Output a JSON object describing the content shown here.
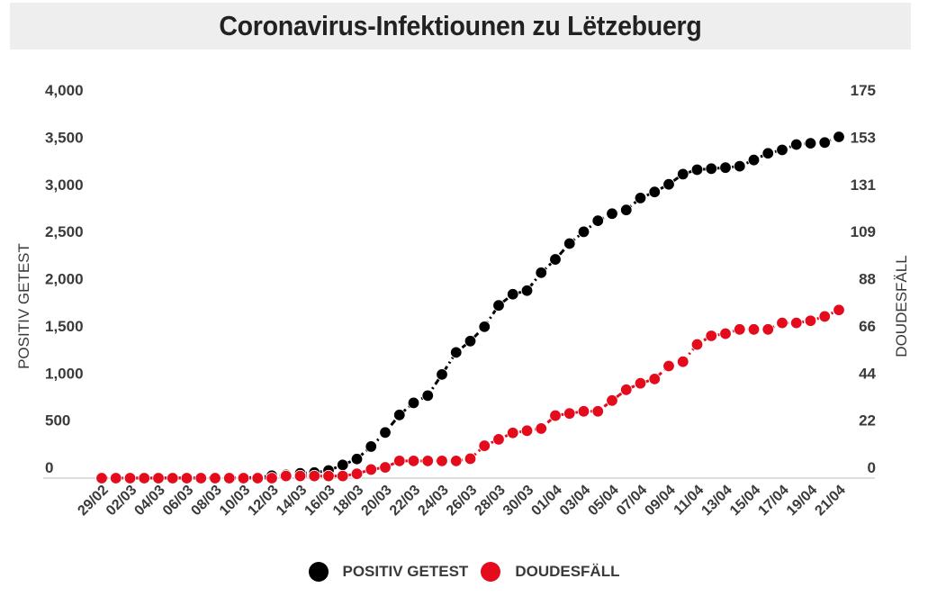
{
  "chart_data": {
    "type": "line",
    "title": "Coronavirus-Infektiounen zu Lëtzebuerg",
    "xlabel": "",
    "ylabel": "POSITIV GETEST",
    "y2label": "DOUDESFÄLL",
    "ylim": [
      0,
      4000
    ],
    "y2lim": [
      0,
      175
    ],
    "yticks": [
      "0",
      "500",
      "1,000",
      "1,500",
      "2,000",
      "2,500",
      "3,000",
      "3,500",
      "4,000"
    ],
    "y2ticks": [
      "0",
      "22",
      "44",
      "66",
      "88",
      "109",
      "131",
      "153",
      "175"
    ],
    "grid": false,
    "legend_position": "bottom-center",
    "x": [
      "29/02",
      "01/03",
      "02/03",
      "03/03",
      "04/03",
      "05/03",
      "06/03",
      "07/03",
      "08/03",
      "09/03",
      "10/03",
      "11/03",
      "12/03",
      "13/03",
      "14/03",
      "15/03",
      "16/03",
      "17/03",
      "18/03",
      "19/03",
      "20/03",
      "21/03",
      "22/03",
      "23/03",
      "24/03",
      "25/03",
      "26/03",
      "27/03",
      "28/03",
      "29/03",
      "30/03",
      "31/03",
      "01/04",
      "02/04",
      "03/04",
      "04/04",
      "05/04",
      "06/04",
      "07/04",
      "08/04",
      "09/04",
      "10/04",
      "11/04",
      "12/04",
      "13/04",
      "14/04",
      "15/04",
      "16/04",
      "17/04",
      "18/04",
      "19/04",
      "20/04",
      "21/04"
    ],
    "xtick_labels": [
      "29/02",
      "02/03",
      "04/03",
      "06/03",
      "08/03",
      "10/03",
      "12/03",
      "14/03",
      "16/03",
      "18/03",
      "20/03",
      "22/03",
      "24/03",
      "26/03",
      "28/03",
      "30/03",
      "01/04",
      "03/04",
      "05/04",
      "07/04",
      "09/04",
      "11/04",
      "13/04",
      "15/04",
      "17/04",
      "19/04",
      "21/04"
    ],
    "series": [
      {
        "name": "POSITIV GETEST",
        "axis": "left",
        "color": "#000000",
        "values": [
          1,
          1,
          1,
          1,
          2,
          2,
          3,
          4,
          4,
          5,
          5,
          7,
          26,
          34,
          51,
          59,
          81,
          140,
          203,
          335,
          484,
          670,
          798,
          875,
          1099,
          1333,
          1453,
          1605,
          1831,
          1950,
          1988,
          2178,
          2319,
          2487,
          2612,
          2729,
          2804,
          2843,
          2970,
          3034,
          3115,
          3223,
          3270,
          3281,
          3292,
          3307,
          3373,
          3444,
          3480,
          3537,
          3550,
          3558,
          3618
        ]
      },
      {
        "name": "DOUDESFÄLL",
        "axis": "right",
        "color": "#e30b1c",
        "values": [
          0,
          0,
          0,
          0,
          0,
          0,
          0,
          0,
          0,
          0,
          0,
          0,
          0,
          1,
          1,
          1,
          1,
          1,
          2,
          4,
          5,
          8,
          8,
          8,
          8,
          8,
          9,
          15,
          18,
          21,
          22,
          23,
          29,
          30,
          31,
          31,
          36,
          41,
          44,
          46,
          52,
          54,
          62,
          66,
          67,
          69,
          69,
          69,
          72,
          72,
          73,
          75,
          78
        ]
      }
    ]
  },
  "legend": {
    "items": [
      {
        "label": "POSITIV GETEST",
        "color": "#000000"
      },
      {
        "label": "DOUDESFÄLL",
        "color": "#e30b1c"
      }
    ]
  }
}
